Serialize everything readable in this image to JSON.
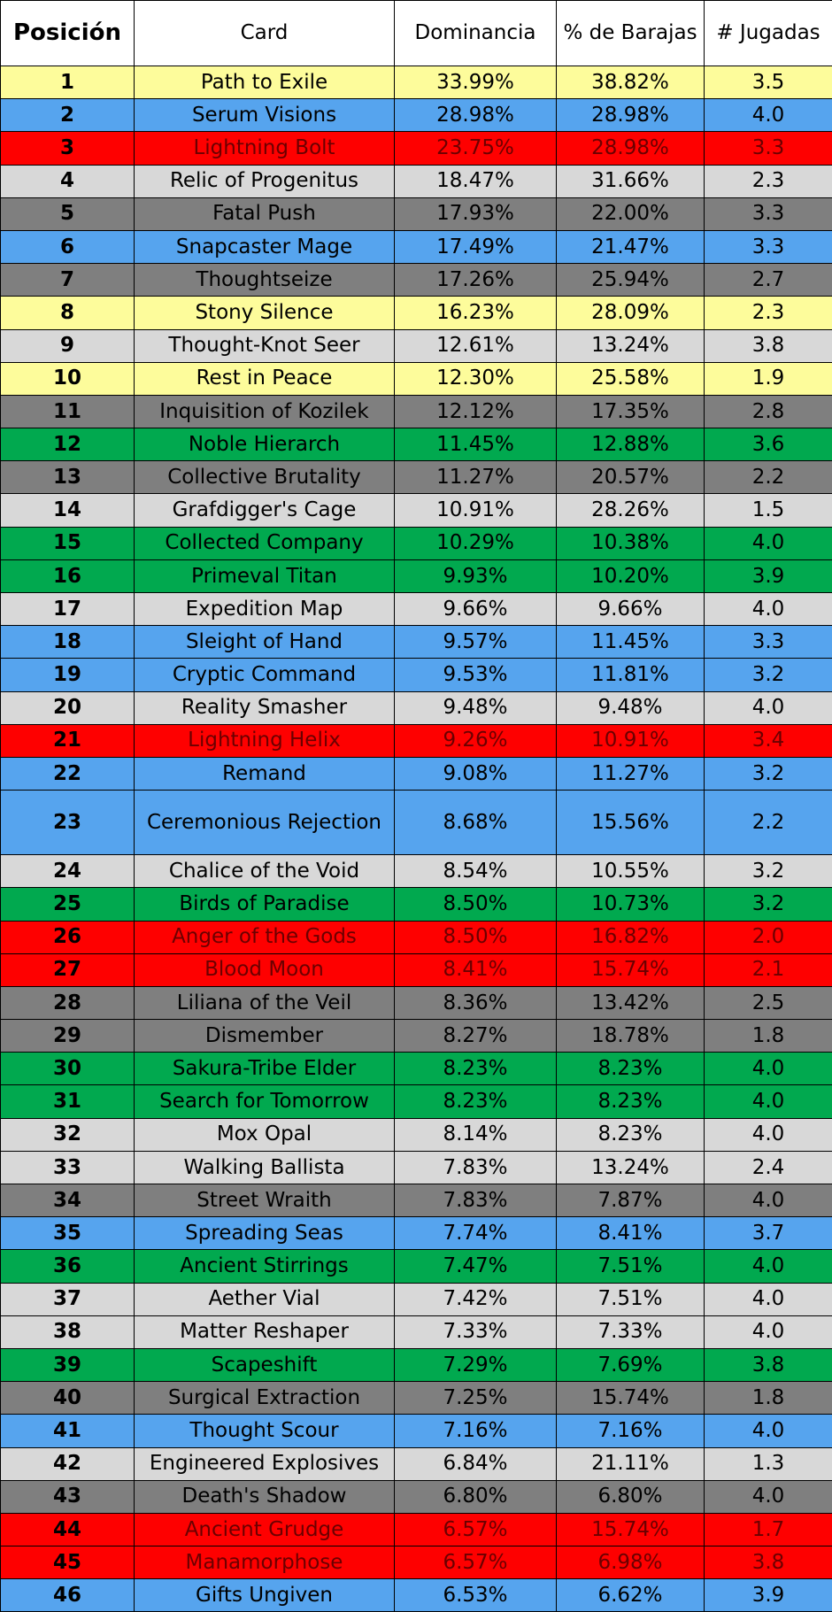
{
  "headers": {
    "position": "Posición",
    "card": "Card",
    "dominance": "Dominancia",
    "decks": "% de Barajas",
    "plays": "# Jugadas"
  },
  "colors": {
    "yellow": "#fdfc9b",
    "blue": "#56a4ee",
    "red": "#fe0000",
    "light_gray": "#d8d8d8",
    "dark_gray": "#7f7f7f",
    "green": "#01a94f"
  },
  "rows": [
    {
      "pos": "1",
      "card": "Path to Exile",
      "dom": "33.99%",
      "decks": "38.82%",
      "plays": "3.5",
      "color": "yellow"
    },
    {
      "pos": "2",
      "card": "Serum Visions",
      "dom": "28.98%",
      "decks": "28.98%",
      "plays": "4.0",
      "color": "blue"
    },
    {
      "pos": "3",
      "card": "Lightning Bolt",
      "dom": "23.75%",
      "decks": "28.98%",
      "plays": "3.3",
      "color": "red"
    },
    {
      "pos": "4",
      "card": "Relic of Progenitus",
      "dom": "18.47%",
      "decks": "31.66%",
      "plays": "2.3",
      "color": "lgray"
    },
    {
      "pos": "5",
      "card": "Fatal Push",
      "dom": "17.93%",
      "decks": "22.00%",
      "plays": "3.3",
      "color": "dgray"
    },
    {
      "pos": "6",
      "card": "Snapcaster Mage",
      "dom": "17.49%",
      "decks": "21.47%",
      "plays": "3.3",
      "color": "blue"
    },
    {
      "pos": "7",
      "card": "Thoughtseize",
      "dom": "17.26%",
      "decks": "25.94%",
      "plays": "2.7",
      "color": "dgray"
    },
    {
      "pos": "8",
      "card": "Stony Silence",
      "dom": "16.23%",
      "decks": "28.09%",
      "plays": "2.3",
      "color": "yellow"
    },
    {
      "pos": "9",
      "card": "Thought-Knot Seer",
      "dom": "12.61%",
      "decks": "13.24%",
      "plays": "3.8",
      "color": "lgray"
    },
    {
      "pos": "10",
      "card": "Rest in Peace",
      "dom": "12.30%",
      "decks": "25.58%",
      "plays": "1.9",
      "color": "yellow"
    },
    {
      "pos": "11",
      "card": "Inquisition of Kozilek",
      "dom": "12.12%",
      "decks": "17.35%",
      "plays": "2.8",
      "color": "dgray"
    },
    {
      "pos": "12",
      "card": "Noble Hierarch",
      "dom": "11.45%",
      "decks": "12.88%",
      "plays": "3.6",
      "color": "green"
    },
    {
      "pos": "13",
      "card": "Collective Brutality",
      "dom": "11.27%",
      "decks": "20.57%",
      "plays": "2.2",
      "color": "dgray"
    },
    {
      "pos": "14",
      "card": "Grafdigger's Cage",
      "dom": "10.91%",
      "decks": "28.26%",
      "plays": "1.5",
      "color": "lgray"
    },
    {
      "pos": "15",
      "card": "Collected Company",
      "dom": "10.29%",
      "decks": "10.38%",
      "plays": "4.0",
      "color": "green"
    },
    {
      "pos": "16",
      "card": "Primeval Titan",
      "dom": "9.93%",
      "decks": "10.20%",
      "plays": "3.9",
      "color": "green"
    },
    {
      "pos": "17",
      "card": "Expedition Map",
      "dom": "9.66%",
      "decks": "9.66%",
      "plays": "4.0",
      "color": "lgray"
    },
    {
      "pos": "18",
      "card": "Sleight of Hand",
      "dom": "9.57%",
      "decks": "11.45%",
      "plays": "3.3",
      "color": "blue"
    },
    {
      "pos": "19",
      "card": "Cryptic Command",
      "dom": "9.53%",
      "decks": "11.81%",
      "plays": "3.2",
      "color": "blue"
    },
    {
      "pos": "20",
      "card": "Reality Smasher",
      "dom": "9.48%",
      "decks": "9.48%",
      "plays": "4.0",
      "color": "lgray"
    },
    {
      "pos": "21",
      "card": "Lightning Helix",
      "dom": "9.26%",
      "decks": "10.91%",
      "plays": "3.4",
      "color": "red"
    },
    {
      "pos": "22",
      "card": "Remand",
      "dom": "9.08%",
      "decks": "11.27%",
      "plays": "3.2",
      "color": "blue"
    },
    {
      "pos": "23",
      "card": "Ceremonious Rejection",
      "dom": "8.68%",
      "decks": "15.56%",
      "plays": "2.2",
      "color": "blue",
      "tall": true
    },
    {
      "pos": "24",
      "card": "Chalice of the Void",
      "dom": "8.54%",
      "decks": "10.55%",
      "plays": "3.2",
      "color": "lgray"
    },
    {
      "pos": "25",
      "card": "Birds of Paradise",
      "dom": "8.50%",
      "decks": "10.73%",
      "plays": "3.2",
      "color": "green"
    },
    {
      "pos": "26",
      "card": "Anger of the Gods",
      "dom": "8.50%",
      "decks": "16.82%",
      "plays": "2.0",
      "color": "red"
    },
    {
      "pos": "27",
      "card": "Blood Moon",
      "dom": "8.41%",
      "decks": "15.74%",
      "plays": "2.1",
      "color": "red"
    },
    {
      "pos": "28",
      "card": "Liliana of the Veil",
      "dom": "8.36%",
      "decks": "13.42%",
      "plays": "2.5",
      "color": "dgray"
    },
    {
      "pos": "29",
      "card": "Dismember",
      "dom": "8.27%",
      "decks": "18.78%",
      "plays": "1.8",
      "color": "dgray"
    },
    {
      "pos": "30",
      "card": "Sakura-Tribe Elder",
      "dom": "8.23%",
      "decks": "8.23%",
      "plays": "4.0",
      "color": "green"
    },
    {
      "pos": "31",
      "card": "Search for Tomorrow",
      "dom": "8.23%",
      "decks": "8.23%",
      "plays": "4.0",
      "color": "green"
    },
    {
      "pos": "32",
      "card": "Mox Opal",
      "dom": "8.14%",
      "decks": "8.23%",
      "plays": "4.0",
      "color": "lgray"
    },
    {
      "pos": "33",
      "card": "Walking Ballista",
      "dom": "7.83%",
      "decks": "13.24%",
      "plays": "2.4",
      "color": "lgray"
    },
    {
      "pos": "34",
      "card": "Street Wraith",
      "dom": "7.83%",
      "decks": "7.87%",
      "plays": "4.0",
      "color": "dgray"
    },
    {
      "pos": "35",
      "card": "Spreading Seas",
      "dom": "7.74%",
      "decks": "8.41%",
      "plays": "3.7",
      "color": "blue"
    },
    {
      "pos": "36",
      "card": "Ancient Stirrings",
      "dom": "7.47%",
      "decks": "7.51%",
      "plays": "4.0",
      "color": "green"
    },
    {
      "pos": "37",
      "card": "Aether Vial",
      "dom": "7.42%",
      "decks": "7.51%",
      "plays": "4.0",
      "color": "lgray"
    },
    {
      "pos": "38",
      "card": "Matter Reshaper",
      "dom": "7.33%",
      "decks": "7.33%",
      "plays": "4.0",
      "color": "lgray"
    },
    {
      "pos": "39",
      "card": "Scapeshift",
      "dom": "7.29%",
      "decks": "7.69%",
      "plays": "3.8",
      "color": "green"
    },
    {
      "pos": "40",
      "card": "Surgical Extraction",
      "dom": "7.25%",
      "decks": "15.74%",
      "plays": "1.8",
      "color": "dgray"
    },
    {
      "pos": "41",
      "card": "Thought Scour",
      "dom": "7.16%",
      "decks": "7.16%",
      "plays": "4.0",
      "color": "blue"
    },
    {
      "pos": "42",
      "card": "Engineered Explosives",
      "dom": "6.84%",
      "decks": "21.11%",
      "plays": "1.3",
      "color": "lgray"
    },
    {
      "pos": "43",
      "card": "Death's Shadow",
      "dom": "6.80%",
      "decks": "6.80%",
      "plays": "4.0",
      "color": "dgray"
    },
    {
      "pos": "44",
      "card": "Ancient Grudge",
      "dom": "6.57%",
      "decks": "15.74%",
      "plays": "1.7",
      "color": "red"
    },
    {
      "pos": "45",
      "card": "Manamorphose",
      "dom": "6.57%",
      "decks": "6.98%",
      "plays": "3.8",
      "color": "red"
    },
    {
      "pos": "46",
      "card": "Gifts Ungiven",
      "dom": "6.53%",
      "decks": "6.62%",
      "plays": "3.9",
      "color": "blue"
    }
  ]
}
